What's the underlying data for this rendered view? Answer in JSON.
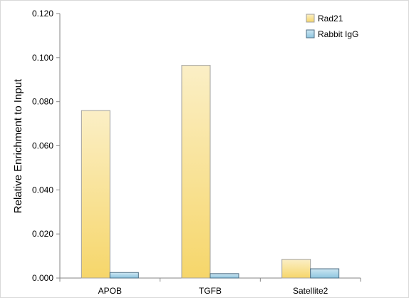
{
  "chart_data": {
    "type": "bar",
    "title": "",
    "xlabel": "",
    "ylabel": "Relative Enrichment to Input",
    "categories": [
      "APOB",
      "TGFB",
      "Satellite2"
    ],
    "series": [
      {
        "name": "Rad21",
        "values": [
          0.076,
          0.0965,
          0.0085
        ],
        "color_top": "#fbefc6",
        "color_bottom": "#f6d66a",
        "stroke": "#a0a0a0"
      },
      {
        "name": "Rabbit IgG",
        "values": [
          0.0025,
          0.002,
          0.0042
        ],
        "color_top": "#cde6f2",
        "color_bottom": "#8ec6e0",
        "stroke": "#4f6f85"
      }
    ],
    "ylim": [
      0,
      0.12
    ],
    "yticks": [
      "0.000",
      "0.020",
      "0.040",
      "0.060",
      "0.080",
      "0.100",
      "0.120"
    ],
    "grid": false,
    "legend_position": "top-right"
  }
}
